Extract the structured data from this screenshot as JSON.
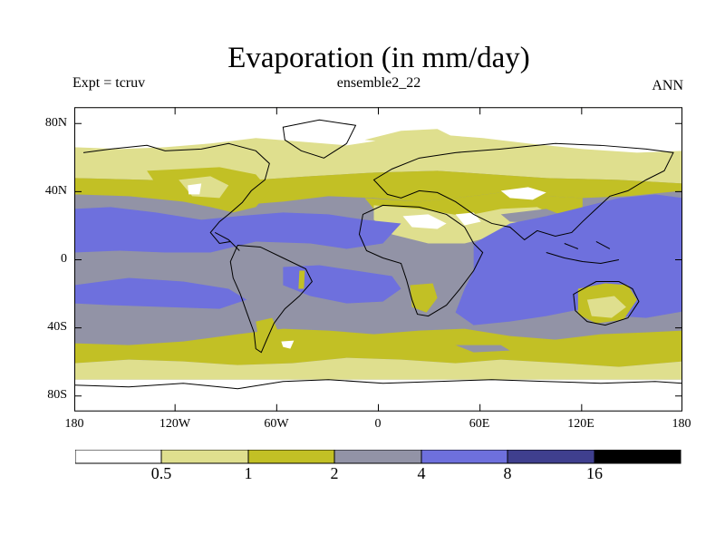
{
  "header": {
    "title": "Evaporation (in mm/day)",
    "expt": "Expt = tcruv",
    "ensemble": "ensemble2_22",
    "season": "ANN"
  },
  "axes": {
    "lat_ticks": [
      {
        "label": "80N",
        "value": 80
      },
      {
        "label": "40N",
        "value": 40
      },
      {
        "label": "0",
        "value": 0
      },
      {
        "label": "40S",
        "value": -40
      },
      {
        "label": "80S",
        "value": -80
      }
    ],
    "lon_ticks": [
      {
        "label": "180",
        "value": -180
      },
      {
        "label": "120W",
        "value": -120
      },
      {
        "label": "60W",
        "value": -60
      },
      {
        "label": "0",
        "value": 0
      },
      {
        "label": "60E",
        "value": 60
      },
      {
        "label": "120E",
        "value": 120
      },
      {
        "label": "180",
        "value": 180
      }
    ]
  },
  "colorbar": {
    "colors": [
      "#ffffff",
      "#dfdf8e",
      "#c2c025",
      "#9293a6",
      "#6e70dd",
      "#3f3f8e",
      "#000000"
    ],
    "labels": [
      "0.5",
      "1",
      "2",
      "4",
      "8",
      "16"
    ]
  },
  "map_layers": {
    "colors": {
      "white": "#ffffff",
      "pale": "#dfdf8e",
      "olive": "#c2c025",
      "gray": "#9293a6",
      "blue": "#6e70dd"
    }
  }
}
